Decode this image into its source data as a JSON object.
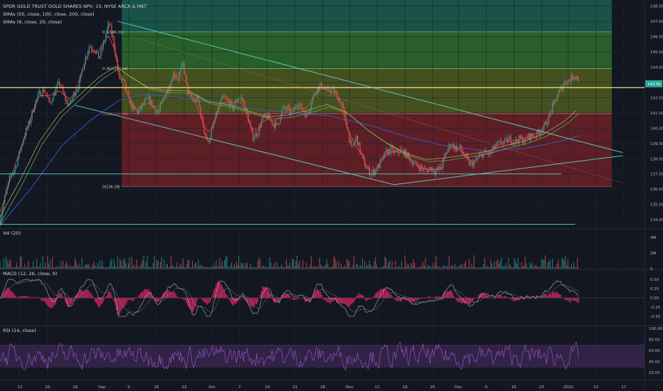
{
  "header": {
    "title": "SPDR GOLD TRUST GOLD SHARES NPV, 15, NYSE ARCA & MKT",
    "ind1": "SMAs (50, close, 100, close, 200, close)",
    "ind2": "SMAs (6, close, 20, close)"
  },
  "colors": {
    "bg": "#131722",
    "grid": "#1f2431",
    "axis_text": "#b2b5be",
    "up": "#26a69a",
    "down": "#ef5350",
    "fib_top": "#1b5e4f",
    "fib_green": "#2e6b2b",
    "fib_olive": "#4f5a1e",
    "fib_red": "#6b2026",
    "trend": "#5fd4c4",
    "yellow": "#f5e08c",
    "sma_red": "#e04a4a",
    "sma_green": "#4caf50",
    "sma_blue": "#3b5bd1",
    "sma_tan": "#c9a86a",
    "macd": "#b0b3bd",
    "macd_hist": "#ff2a6d",
    "rsi": "#9c55c7",
    "rsi_band": "#3a2650"
  },
  "chart_data": [
    {
      "type": "line",
      "panel": "price",
      "ylim": [
        133.4,
        148.4
      ],
      "y_ticks": [
        "148.00",
        "147.00",
        "146.00",
        "145.00",
        "144.00",
        "143.00",
        "142.00",
        "141.00",
        "140.00",
        "139.00",
        "138.00",
        "137.00",
        "136.00",
        "135.00",
        "134.00"
      ],
      "y_tick_values": [
        148,
        147,
        146,
        145,
        144,
        143,
        142,
        141,
        140,
        139,
        138,
        137,
        136,
        135,
        134
      ],
      "x_labels": [
        "12",
        "19",
        "26",
        "Sep",
        "9",
        "16",
        "23",
        "Oct",
        "7",
        "14",
        "21",
        "28",
        "Nov",
        "11",
        "18",
        "25",
        "Dec",
        "9",
        "16",
        "23",
        "2020",
        "13",
        "17"
      ],
      "x_index": [
        0.7,
        3.5,
        6.3,
        9.0,
        11.7,
        14.5,
        17.3,
        20.1,
        22.9,
        25.7,
        28.5,
        31.3,
        34.0,
        36.8,
        39.6,
        42.4,
        45.0,
        47.8,
        50.6,
        53.4,
        56.1,
        58.9,
        61.7
      ],
      "x_range": [
        -1.3,
        63.8
      ],
      "last_price": "142.91",
      "last_price_value": 142.91,
      "price_path": [
        [
          -1.3,
          134.0
        ],
        [
          -0.8,
          135.5
        ],
        [
          -0.3,
          136.8
        ],
        [
          0.2,
          137.3
        ],
        [
          0.7,
          138.5
        ],
        [
          1.2,
          139.6
        ],
        [
          1.7,
          140.4
        ],
        [
          2.2,
          141.6
        ],
        [
          2.7,
          142.3
        ],
        [
          3.2,
          142.5
        ],
        [
          3.7,
          141.6
        ],
        [
          4.2,
          142.3
        ],
        [
          4.7,
          143.0
        ],
        [
          5.2,
          142.0
        ],
        [
          5.7,
          141.5
        ],
        [
          6.2,
          142.3
        ],
        [
          6.7,
          142.9
        ],
        [
          7.2,
          144.3
        ],
        [
          7.7,
          145.4
        ],
        [
          8.2,
          145.2
        ],
        [
          8.7,
          144.6
        ],
        [
          9.2,
          145.6
        ],
        [
          9.7,
          146.9
        ],
        [
          10.2,
          145.6
        ],
        [
          10.7,
          143.3
        ],
        [
          11.2,
          143.0
        ],
        [
          11.7,
          141.9
        ],
        [
          12.2,
          141.2
        ],
        [
          12.7,
          141.1
        ],
        [
          13.2,
          141.6
        ],
        [
          13.7,
          141.9
        ],
        [
          14.2,
          141.4
        ],
        [
          14.7,
          141.0
        ],
        [
          15.2,
          141.9
        ],
        [
          15.7,
          142.6
        ],
        [
          16.2,
          143.6
        ],
        [
          16.7,
          143.3
        ],
        [
          17.2,
          144.2
        ],
        [
          17.7,
          142.2
        ],
        [
          18.2,
          141.8
        ],
        [
          18.7,
          141.9
        ],
        [
          19.2,
          140.2
        ],
        [
          19.7,
          139.0
        ],
        [
          20.2,
          140.1
        ],
        [
          20.7,
          141.2
        ],
        [
          21.2,
          142.0
        ],
        [
          21.7,
          141.8
        ],
        [
          22.2,
          141.3
        ],
        [
          22.7,
          142.0
        ],
        [
          23.2,
          141.9
        ],
        [
          23.7,
          140.8
        ],
        [
          24.2,
          139.4
        ],
        [
          24.7,
          139.7
        ],
        [
          25.2,
          140.6
        ],
        [
          25.7,
          140.8
        ],
        [
          26.2,
          140.4
        ],
        [
          26.7,
          140.1
        ],
        [
          27.2,
          141.2
        ],
        [
          27.7,
          141.3
        ],
        [
          28.2,
          140.9
        ],
        [
          28.7,
          141.7
        ],
        [
          29.2,
          141.3
        ],
        [
          29.7,
          140.8
        ],
        [
          30.2,
          141.9
        ],
        [
          30.7,
          142.6
        ],
        [
          31.2,
          142.8
        ],
        [
          31.7,
          142.4
        ],
        [
          32.2,
          142.5
        ],
        [
          32.7,
          142.2
        ],
        [
          33.2,
          141.6
        ],
        [
          33.7,
          140.3
        ],
        [
          34.2,
          138.6
        ],
        [
          34.7,
          139.4
        ],
        [
          35.2,
          138.2
        ],
        [
          35.7,
          137.4
        ],
        [
          36.2,
          137.0
        ],
        [
          36.7,
          137.3
        ],
        [
          37.2,
          137.8
        ],
        [
          37.7,
          138.4
        ],
        [
          38.2,
          138.6
        ],
        [
          38.7,
          138.3
        ],
        [
          39.2,
          138.6
        ],
        [
          39.7,
          138.3
        ],
        [
          40.2,
          137.9
        ],
        [
          40.7,
          137.6
        ],
        [
          41.2,
          137.4
        ],
        [
          41.7,
          137.2
        ],
        [
          42.2,
          137.4
        ],
        [
          42.7,
          137.2
        ],
        [
          43.2,
          137.3
        ],
        [
          43.7,
          138.3
        ],
        [
          44.2,
          139.0
        ],
        [
          44.7,
          138.7
        ],
        [
          45.2,
          138.7
        ],
        [
          45.7,
          138.1
        ],
        [
          46.2,
          137.6
        ],
        [
          46.7,
          137.8
        ],
        [
          47.2,
          138.2
        ],
        [
          47.7,
          138.4
        ],
        [
          48.2,
          138.3
        ],
        [
          48.7,
          138.8
        ],
        [
          49.2,
          139.0
        ],
        [
          49.7,
          139.1
        ],
        [
          50.2,
          139.3
        ],
        [
          50.7,
          139.1
        ],
        [
          51.2,
          139.3
        ],
        [
          51.7,
          139.2
        ],
        [
          52.2,
          139.5
        ],
        [
          52.7,
          139.5
        ],
        [
          53.2,
          139.8
        ],
        [
          53.7,
          140.1
        ],
        [
          54.2,
          140.8
        ],
        [
          54.7,
          141.7
        ],
        [
          55.2,
          142.4
        ],
        [
          55.7,
          143.0
        ],
        [
          56.2,
          143.1
        ],
        [
          56.7,
          143.5
        ],
        [
          57.2,
          143.2
        ]
      ],
      "sma_fast": [
        [
          -1.3,
          133.7
        ],
        [
          1.0,
          136.4
        ],
        [
          3.0,
          139.0
        ],
        [
          5.0,
          140.8
        ],
        [
          7.0,
          142.0
        ],
        [
          9.0,
          143.2
        ],
        [
          10.7,
          143.9
        ],
        [
          12.0,
          143.3
        ],
        [
          14.0,
          142.5
        ],
        [
          16.0,
          142.3
        ],
        [
          18.0,
          142.3
        ],
        [
          20.0,
          141.6
        ],
        [
          22.0,
          141.4
        ],
        [
          24.0,
          141.0
        ],
        [
          26.0,
          140.6
        ],
        [
          28.0,
          140.7
        ],
        [
          30.0,
          141.0
        ],
        [
          32.0,
          141.4
        ],
        [
          34.0,
          140.9
        ],
        [
          36.0,
          139.8
        ],
        [
          38.0,
          138.9
        ],
        [
          40.0,
          138.2
        ],
        [
          42.0,
          137.8
        ],
        [
          44.0,
          137.9
        ],
        [
          46.0,
          138.1
        ],
        [
          48.0,
          138.3
        ],
        [
          50.0,
          138.7
        ],
        [
          52.0,
          139.0
        ],
        [
          54.0,
          139.5
        ],
        [
          56.0,
          140.3
        ],
        [
          57.2,
          141.0
        ]
      ],
      "sma_slow": [
        [
          -1.3,
          133.6
        ],
        [
          2.0,
          136.2
        ],
        [
          5.0,
          138.9
        ],
        [
          8.0,
          140.6
        ],
        [
          10.7,
          141.8
        ],
        [
          13.0,
          142.2
        ],
        [
          16.0,
          142.1
        ],
        [
          20.0,
          141.7
        ],
        [
          24.0,
          141.3
        ],
        [
          28.0,
          141.0
        ],
        [
          32.0,
          140.8
        ],
        [
          36.0,
          140.2
        ],
        [
          40.0,
          139.4
        ],
        [
          44.0,
          138.8
        ],
        [
          48.0,
          138.5
        ],
        [
          52.0,
          138.7
        ],
        [
          55.0,
          139.1
        ],
        [
          57.2,
          139.5
        ]
      ],
      "fib_range": [
        11.0,
        60.5
      ],
      "fib_levels": [
        {
          "label": "0.5(146.31)",
          "value": 146.31
        },
        {
          "label": "0.382(143.92)",
          "value": 143.92
        },
        {
          "label": "0.236(140.95)",
          "value": 140.95
        },
        {
          "label": "0(136.18)",
          "value": 136.18
        }
      ],
      "fib_top_value": 148.4,
      "h_line_yellow": 142.66,
      "h_line_cyan_1": {
        "from": -1.3,
        "to": 55.4,
        "value": 137.0
      },
      "h_line_cyan_2": {
        "from": -1.3,
        "to": 56.8,
        "value": 133.7
      },
      "trend_lines": [
        {
          "from": [
            10.6,
            147.0
          ],
          "to": [
            61.6,
            138.4
          ]
        },
        {
          "from": [
            6.3,
            141.5
          ],
          "to": [
            38.5,
            136.3
          ]
        },
        {
          "from": [
            38.5,
            136.3
          ],
          "to": [
            61.6,
            138.2
          ]
        },
        {
          "from": [
            12.0,
            146.0
          ],
          "to": [
            61.6,
            136.4
          ]
        }
      ]
    },
    {
      "type": "bar",
      "panel": "volume",
      "title": "Vol (20)",
      "ylim": [
        0,
        5
      ],
      "y_ticks": [
        "4M",
        "2M",
        "0"
      ],
      "y_tick_values": [
        4,
        2,
        0
      ]
    },
    {
      "type": "line",
      "panel": "macd",
      "title": "MACD (12, 26, close, 9)",
      "ylim": [
        -0.75,
        0.75
      ],
      "y_ticks": [
        "0.50",
        "0.25",
        "0.00",
        "-0.25",
        "-0.50"
      ],
      "y_tick_values": [
        0.5,
        0.25,
        0,
        -0.25,
        -0.5
      ]
    },
    {
      "type": "line",
      "panel": "rsi",
      "title": "RSI (14, close)",
      "ylim": [
        6,
        104
      ],
      "y_ticks": [
        "100.00",
        "80.00",
        "60.00",
        "40.00",
        "20.00"
      ],
      "y_tick_values": [
        100,
        80,
        60,
        40,
        20
      ],
      "band": [
        30,
        70
      ]
    }
  ]
}
